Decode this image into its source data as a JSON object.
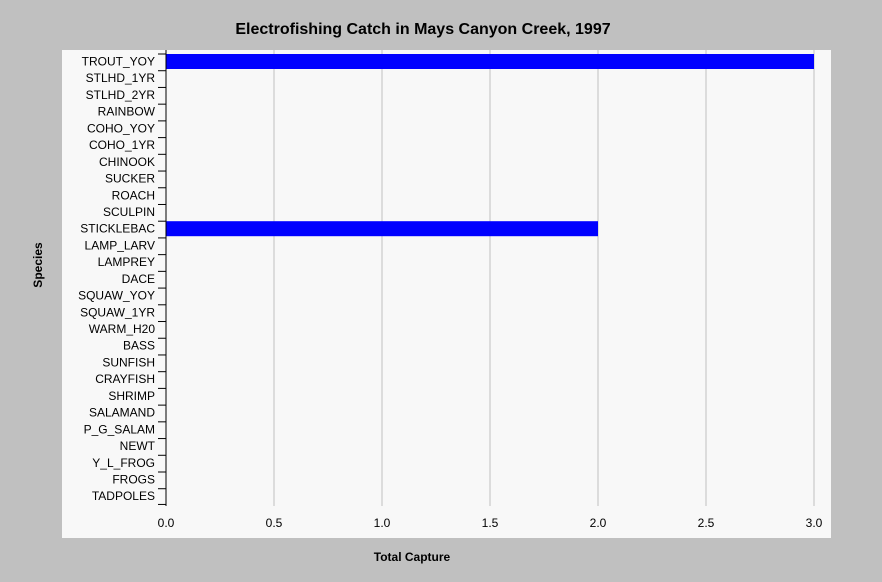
{
  "chart_data": {
    "type": "bar",
    "orientation": "horizontal",
    "title": "Electrofishing Catch in Mays Canyon Creek, 1997",
    "xlabel": "Total Capture",
    "ylabel": "Species",
    "categories": [
      "TROUT_YOY",
      "STLHD_1YR",
      "STLHD_2YR",
      "RAINBOW",
      "COHO_YOY",
      "COHO_1YR",
      "CHINOOK",
      "SUCKER",
      "ROACH",
      "SCULPIN",
      "STICKLEBAC",
      "LAMP_LARV",
      "LAMPREY",
      "DACE",
      "SQUAW_YOY",
      "SQUAW_1YR",
      "WARM_H20",
      "BASS",
      "SUNFISH",
      "CRAYFISH",
      "SHRIMP",
      "SALAMAND",
      "P_G_SALAM",
      "NEWT",
      "Y_L_FROG",
      "FROGS",
      "TADPOLES"
    ],
    "values": [
      3,
      0,
      0,
      0,
      0,
      0,
      0,
      0,
      0,
      0,
      2,
      0,
      0,
      0,
      0,
      0,
      0,
      0,
      0,
      0,
      0,
      0,
      0,
      0,
      0,
      0,
      0
    ],
    "xlim": [
      0,
      3.0
    ],
    "xticks": [
      "0.0",
      "0.5",
      "1.0",
      "1.5",
      "2.0",
      "2.5",
      "3.0"
    ],
    "grid": "vertical",
    "legend": "none",
    "colors": {
      "bar": "#0000ff",
      "background": "#c0c0c0",
      "plot_background": "#f8f8f8",
      "grid": "#c0c0c0"
    }
  }
}
